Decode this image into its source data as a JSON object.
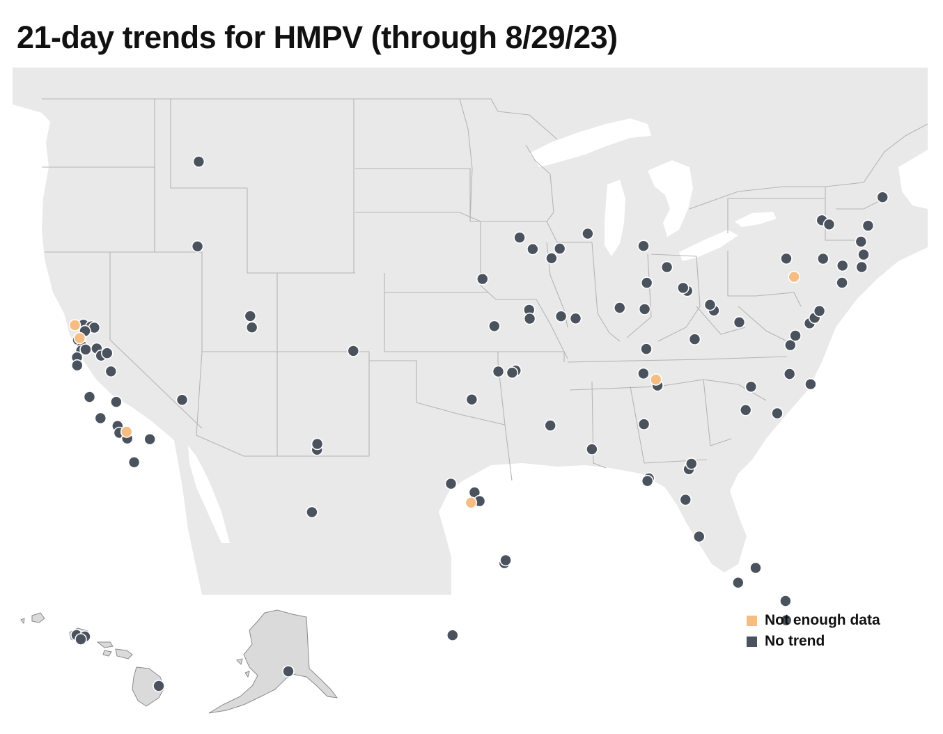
{
  "title": "21-day trends for HMPV (through 8/29/23)",
  "colors": {
    "not_enough_data": "#f6bd83",
    "no_trend": "#4a525e",
    "land": "#e9e9e9",
    "border": "#b0b0b0"
  },
  "legend": [
    {
      "key": "not_enough_data",
      "label": "Not enough data"
    },
    {
      "key": "no_trend",
      "label": "No trend"
    }
  ],
  "sites": [
    {
      "category": "no_trend",
      "lat": 47.66,
      "lon": -117.4
    },
    {
      "category": "no_trend",
      "lat": 43.6,
      "lon": -116.2
    },
    {
      "category": "no_trend",
      "lat": 40.76,
      "lon": -111.89
    },
    {
      "category": "no_trend",
      "lat": 40.23,
      "lon": -111.66
    },
    {
      "category": "no_trend",
      "lat": 39.74,
      "lon": -104.99
    },
    {
      "category": "not_enough_data",
      "lat": 38.44,
      "lon": -122.71
    },
    {
      "category": "no_trend",
      "lat": 38.58,
      "lon": -122.2
    },
    {
      "category": "no_trend",
      "lat": 38.6,
      "lon": -121.7
    },
    {
      "category": "no_trend",
      "lat": 38.58,
      "lon": -121.49
    },
    {
      "category": "no_trend",
      "lat": 38.3,
      "lon": -122.0
    },
    {
      "category": "not_enough_data",
      "lat": 37.9,
      "lon": -122.2
    },
    {
      "category": "no_trend",
      "lat": 37.8,
      "lon": -122.27
    },
    {
      "category": "no_trend",
      "lat": 37.55,
      "lon": -121.9
    },
    {
      "category": "no_trend",
      "lat": 37.34,
      "lon": -121.89
    },
    {
      "category": "no_trend",
      "lat": 37.45,
      "lon": -121.65
    },
    {
      "category": "no_trend",
      "lat": 37.64,
      "lon": -121.0
    },
    {
      "category": "no_trend",
      "lat": 37.36,
      "lon": -120.62
    },
    {
      "category": "no_trend",
      "lat": 36.97,
      "lon": -122.03
    },
    {
      "category": "no_trend",
      "lat": 36.74,
      "lon": -119.79
    },
    {
      "category": "no_trend",
      "lat": 37.55,
      "lon": -120.3
    },
    {
      "category": "no_trend",
      "lat": 36.6,
      "lon": -121.89
    },
    {
      "category": "no_trend",
      "lat": 35.37,
      "lon": -119.02
    },
    {
      "category": "no_trend",
      "lat": 35.28,
      "lon": -120.66
    },
    {
      "category": "no_trend",
      "lat": 34.42,
      "lon": -119.7
    },
    {
      "category": "no_trend",
      "lat": 34.25,
      "lon": -118.6
    },
    {
      "category": "not_enough_data",
      "lat": 34.08,
      "lon": -118.0
    },
    {
      "category": "no_trend",
      "lat": 33.95,
      "lon": -118.4
    },
    {
      "category": "no_trend",
      "lat": 33.77,
      "lon": -117.87
    },
    {
      "category": "no_trend",
      "lat": 32.72,
      "lon": -117.16
    },
    {
      "category": "no_trend",
      "lat": 33.98,
      "lon": -116.55
    },
    {
      "category": "no_trend",
      "lat": 36.17,
      "lon": -115.14
    },
    {
      "category": "no_trend",
      "lat": 34.8,
      "lon": -106.6
    },
    {
      "category": "no_trend",
      "lat": 35.08,
      "lon": -106.62
    },
    {
      "category": "no_trend",
      "lat": 31.76,
      "lon": -106.49
    },
    {
      "category": "no_trend",
      "lat": 33.6,
      "lon": -98.5
    },
    {
      "category": "no_trend",
      "lat": 33.2,
      "lon": -97.1
    },
    {
      "category": "not_enough_data",
      "lat": 32.7,
      "lon": -97.3
    },
    {
      "category": "no_trend",
      "lat": 32.78,
      "lon": -96.8
    },
    {
      "category": "no_trend",
      "lat": 29.76,
      "lon": -95.37
    },
    {
      "category": "no_trend",
      "lat": 29.9,
      "lon": -95.3
    },
    {
      "category": "no_trend",
      "lat": 26.2,
      "lon": -98.2
    },
    {
      "category": "no_trend",
      "lat": 37.7,
      "lon": -97.34
    },
    {
      "category": "no_trend",
      "lat": 39.06,
      "lon": -95.68
    },
    {
      "category": "no_trend",
      "lat": 39.1,
      "lon": -94.58
    },
    {
      "category": "no_trend",
      "lat": 39.0,
      "lon": -94.8
    },
    {
      "category": "no_trend",
      "lat": 41.26,
      "lon": -95.93
    },
    {
      "category": "no_trend",
      "lat": 43.55,
      "lon": -96.73
    },
    {
      "category": "no_trend",
      "lat": 45.56,
      "lon": -94.16
    },
    {
      "category": "no_trend",
      "lat": 44.98,
      "lon": -93.27
    },
    {
      "category": "no_trend",
      "lat": 44.5,
      "lon": -92.0
    },
    {
      "category": "no_trend",
      "lat": 44.95,
      "lon": -91.4
    },
    {
      "category": "no_trend",
      "lat": 45.6,
      "lon": -89.4
    },
    {
      "category": "no_trend",
      "lat": 42.03,
      "lon": -93.62
    },
    {
      "category": "no_trend",
      "lat": 41.6,
      "lon": -93.6
    },
    {
      "category": "no_trend",
      "lat": 41.66,
      "lon": -91.53
    },
    {
      "category": "no_trend",
      "lat": 41.52,
      "lon": -90.58
    },
    {
      "category": "no_trend",
      "lat": 41.88,
      "lon": -87.63
    },
    {
      "category": "no_trend",
      "lat": 41.7,
      "lon": -86.0
    },
    {
      "category": "no_trend",
      "lat": 39.77,
      "lon": -86.16
    },
    {
      "category": "no_trend",
      "lat": 38.6,
      "lon": -86.5
    },
    {
      "category": "no_trend",
      "lat": 36.4,
      "lon": -92.5
    },
    {
      "category": "no_trend",
      "lat": 35.15,
      "lon": -90.05
    },
    {
      "category": "no_trend",
      "lat": 37.95,
      "lon": -85.7
    },
    {
      "category": "not_enough_data",
      "lat": 38.25,
      "lon": -85.76
    },
    {
      "category": "no_trend",
      "lat": 36.16,
      "lon": -86.78
    },
    {
      "category": "no_trend",
      "lat": 33.52,
      "lon": -86.8
    },
    {
      "category": "no_trend",
      "lat": 33.4,
      "lon": -86.9
    },
    {
      "category": "no_trend",
      "lat": 33.75,
      "lon": -84.39
    },
    {
      "category": "no_trend",
      "lat": 34.0,
      "lon": -84.2
    },
    {
      "category": "no_trend",
      "lat": 32.3,
      "lon": -84.8
    },
    {
      "category": "no_trend",
      "lat": 30.44,
      "lon": -84.28
    },
    {
      "category": "no_trend",
      "lat": 28.54,
      "lon": -81.38
    },
    {
      "category": "no_trend",
      "lat": 27.95,
      "lon": -82.46
    },
    {
      "category": "no_trend",
      "lat": 26.7,
      "lon": -80.05
    },
    {
      "category": "no_trend",
      "lat": 25.76,
      "lon": -80.19
    },
    {
      "category": "no_trend",
      "lat": 35.78,
      "lon": -78.64
    },
    {
      "category": "no_trend",
      "lat": 36.2,
      "lon": -80.5
    },
    {
      "category": "no_trend",
      "lat": 37.27,
      "lon": -79.94
    },
    {
      "category": "no_trend",
      "lat": 37.54,
      "lon": -77.44
    },
    {
      "category": "no_trend",
      "lat": 36.85,
      "lon": -76.29
    },
    {
      "category": "no_trend",
      "lat": 38.9,
      "lon": -77.04
    },
    {
      "category": "no_trend",
      "lat": 39.3,
      "lon": -76.6
    },
    {
      "category": "no_trend",
      "lat": 39.74,
      "lon": -75.55
    },
    {
      "category": "no_trend",
      "lat": 39.95,
      "lon": -75.16
    },
    {
      "category": "no_trend",
      "lat": 40.22,
      "lon": -74.76
    },
    {
      "category": "no_trend",
      "lat": 40.44,
      "lon": -79.99
    },
    {
      "category": "no_trend",
      "lat": 41.2,
      "lon": -81.5
    },
    {
      "category": "no_trend",
      "lat": 41.5,
      "lon": -81.69
    },
    {
      "category": "no_trend",
      "lat": 39.96,
      "lon": -83.0
    },
    {
      "category": "no_trend",
      "lat": 42.96,
      "lon": -85.67
    },
    {
      "category": "no_trend",
      "lat": 42.33,
      "lon": -83.05
    },
    {
      "category": "no_trend",
      "lat": 42.5,
      "lon": -83.3
    },
    {
      "category": "no_trend",
      "lat": 43.6,
      "lon": -84.2
    },
    {
      "category": "no_trend",
      "lat": 44.76,
      "lon": -85.62
    },
    {
      "category": "no_trend",
      "lat": 43.05,
      "lon": -76.15
    },
    {
      "category": "not_enough_data",
      "lat": 42.1,
      "lon": -75.9
    },
    {
      "category": "no_trend",
      "lat": 44.48,
      "lon": -73.21
    },
    {
      "category": "no_trend",
      "lat": 42.65,
      "lon": -73.75
    },
    {
      "category": "no_trend",
      "lat": 42.36,
      "lon": -71.06
    },
    {
      "category": "no_trend",
      "lat": 42.1,
      "lon": -72.6
    },
    {
      "category": "no_trend",
      "lat": 41.8,
      "lon": -71.4
    },
    {
      "category": "no_trend",
      "lat": 43.66,
      "lon": -70.26
    },
    {
      "category": "no_trend",
      "lat": 43.0,
      "lon": -71.0
    },
    {
      "category": "no_trend",
      "lat": 44.8,
      "lon": -68.77
    },
    {
      "category": "no_trend",
      "lat": 44.2,
      "lon": -72.8
    },
    {
      "category": "no_trend",
      "lat": 41.3,
      "lon": -72.9
    }
  ],
  "inset_sites": [
    {
      "category": "no_trend",
      "location": "Oahu, Hawaii"
    },
    {
      "category": "no_trend",
      "location": "Hilo, Hawaii"
    },
    {
      "category": "no_trend",
      "location": "Anchorage, Alaska"
    }
  ]
}
